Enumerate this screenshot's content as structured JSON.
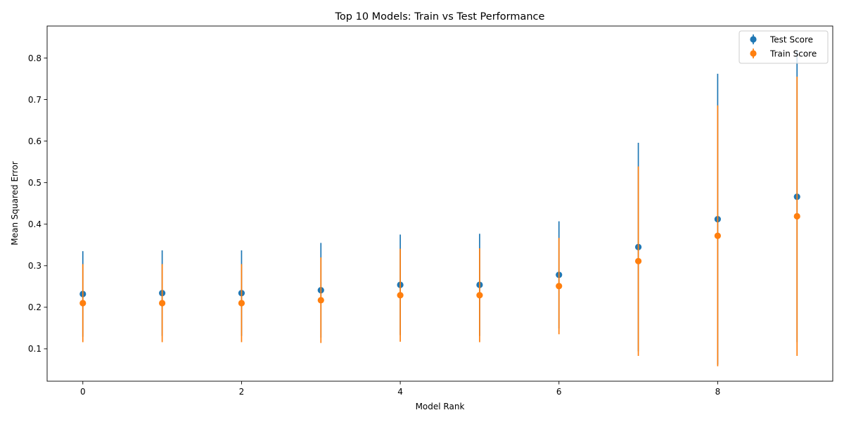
{
  "chart_data": {
    "type": "scatter",
    "title": "Top 10 Models: Train vs Test Performance",
    "xlabel": "Model Rank",
    "ylabel": "Mean Squared Error",
    "xlim": [
      -0.45,
      9.45
    ],
    "ylim": [
      0.022,
      0.877
    ],
    "xticks": [
      0,
      2,
      4,
      6,
      8
    ],
    "yticks": [
      0.1,
      0.2,
      0.3,
      0.4,
      0.5,
      0.6,
      0.7,
      0.8
    ],
    "grid": false,
    "legend_position": "top-right",
    "x": [
      0,
      1,
      2,
      3,
      4,
      5,
      6,
      7,
      8,
      9
    ],
    "series": [
      {
        "name": "Test Score",
        "color": "#1f77b4",
        "values": [
          0.232,
          0.234,
          0.234,
          0.241,
          0.254,
          0.254,
          0.278,
          0.345,
          0.412,
          0.466
        ],
        "errors": [
          0.103,
          0.103,
          0.103,
          0.114,
          0.121,
          0.123,
          0.129,
          0.251,
          0.35,
          0.35
        ]
      },
      {
        "name": "Train Score",
        "color": "#ff7f0e",
        "values": [
          0.21,
          0.21,
          0.21,
          0.217,
          0.229,
          0.229,
          0.251,
          0.311,
          0.372,
          0.419
        ],
        "errors": [
          0.094,
          0.094,
          0.094,
          0.103,
          0.112,
          0.113,
          0.116,
          0.228,
          0.314,
          0.336
        ]
      }
    ]
  }
}
